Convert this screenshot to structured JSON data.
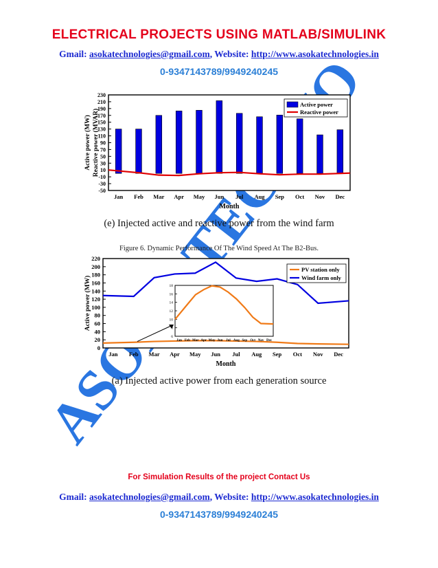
{
  "header": {
    "title": "ELECTRICAL PROJECTS USING MATLAB/SIMULINK",
    "gmail_label": "Gmail: ",
    "gmail": "asokatechnologies@gmail.com",
    "website_label": ", Website: ",
    "website": "http://www.asokatechnologies.in",
    "phone": "0-9347143789/9949240245"
  },
  "watermark": {
    "text": "ASOKA TECHNO"
  },
  "figure_e": {
    "caption": "(e) Injected active and reactive power from the wind farm",
    "chart_data": {
      "type": "bar",
      "categories": [
        "Jan",
        "Feb",
        "Mar",
        "Apr",
        "May",
        "Jun",
        "Jul",
        "Aug",
        "Sep",
        "Oct",
        "Nov",
        "Dec"
      ],
      "series": [
        {
          "name": "Active power",
          "type": "bar",
          "values": [
            130,
            130,
            170,
            183,
            185,
            213,
            176,
            166,
            171,
            160,
            113,
            128
          ]
        },
        {
          "name": "Reactive power",
          "type": "line",
          "values": [
            10,
            2,
            -5,
            -6,
            -1,
            2,
            3,
            -1,
            -4,
            -2,
            -2,
            1
          ]
        }
      ],
      "xlabel": "Month",
      "ylabel": [
        "Active power (MW)",
        "Reactive power (MVAR)"
      ],
      "ylim": [
        -50,
        230
      ],
      "yticks": [
        -50,
        -30,
        -10,
        10,
        30,
        50,
        70,
        90,
        110,
        130,
        150,
        170,
        190,
        210,
        230
      ],
      "legend": "top-right",
      "colors": {
        "active": "#0000e0",
        "reactive": "#e00000"
      }
    }
  },
  "figure6_caption": "Figure 6. Dynamic Performance Of The Wind Speed At The B2-Bus.",
  "figure_a": {
    "caption": "(a) Injected active power from each generation source",
    "chart_data": {
      "type": "line",
      "categories": [
        "Jan",
        "Feb",
        "Mar",
        "Apr",
        "May",
        "Jun",
        "Jul",
        "Aug",
        "Sep",
        "Oct",
        "Nov",
        "Dec"
      ],
      "series": [
        {
          "name": "PV station only",
          "values": [
            12,
            14,
            16,
            17,
            18,
            18,
            17,
            16,
            14,
            11,
            10,
            9
          ]
        },
        {
          "name": "Wind farm only",
          "values": [
            129,
            127,
            173,
            182,
            184,
            211,
            172,
            164,
            170,
            156,
            110,
            116
          ]
        }
      ],
      "xlabel": "Month",
      "ylabel": "Active power (MW)",
      "ylim": [
        0,
        220
      ],
      "yticks": [
        0,
        20,
        40,
        60,
        80,
        100,
        120,
        140,
        160,
        180,
        200,
        220
      ],
      "legend": "top-right",
      "colors": {
        "pv": "#f07a17",
        "wind": "#0000e0"
      },
      "inset": {
        "categories": [
          "Jan",
          "Feb",
          "Mar",
          "Apr",
          "May",
          "Jun",
          "Jul",
          "Aug",
          "Sep",
          "Oct",
          "Nov",
          "Dec"
        ],
        "values": [
          10,
          13.5,
          15.8,
          17.0,
          17.9,
          17.6,
          16.4,
          14.8,
          12.8,
          10.5,
          9.0,
          8.9
        ],
        "ylim": [
          6,
          18
        ],
        "yticks": [
          6,
          8,
          10,
          12,
          14,
          16,
          18
        ]
      }
    }
  },
  "footer": {
    "note": "For Simulation Results of the project Contact Us",
    "gmail_label": "Gmail: ",
    "gmail": "asokatechnologies@gmail.com",
    "website_label": ", Website: ",
    "website": "http://www.asokatechnologies.in",
    "phone": "0-9347143789/9949240245"
  }
}
